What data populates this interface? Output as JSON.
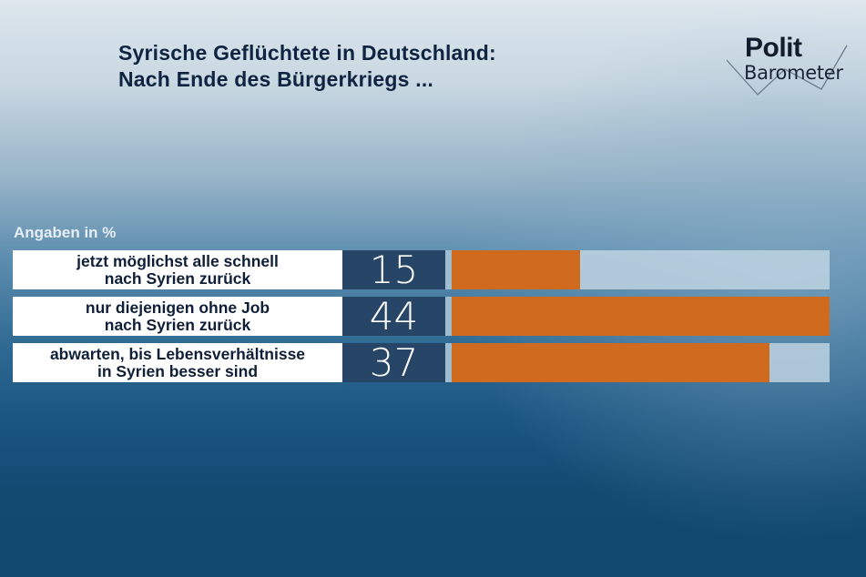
{
  "title": {
    "line1": "Syrische Geflüchtete in Deutschland:",
    "line2": "Nach Ende des Bürgerkriegs ..."
  },
  "logo": {
    "top": "Polit",
    "bottom": "Barometer"
  },
  "unit_label": "Angaben in %",
  "colors": {
    "bar": "#cf6a1e",
    "value_box": "#274566",
    "track": "#bed4e2",
    "title": "#0f2440"
  },
  "rows": [
    {
      "label_line1": "jetzt möglichst alle schnell",
      "label_line2": "nach Syrien zurück",
      "value": "15"
    },
    {
      "label_line1": "nur diejenigen ohne Job",
      "label_line2": "nach Syrien zurück",
      "value": "44"
    },
    {
      "label_line1": "abwarten, bis Lebensverhältnisse",
      "label_line2": "in Syrien besser sind",
      "value": "37"
    }
  ],
  "chart_data": {
    "type": "bar",
    "orientation": "horizontal",
    "title": "Syrische Geflüchtete in Deutschland: Nach Ende des Bürgerkriegs ...",
    "subtitle": "Angaben in %",
    "categories": [
      "jetzt möglichst alle schnell nach Syrien zurück",
      "nur diejenigen ohne Job nach Syrien zurück",
      "abwarten, bis Lebensverhältnisse in Syrien besser sind"
    ],
    "values": [
      15,
      44,
      37
    ],
    "xlabel": "",
    "ylabel": "",
    "xlim": [
      0,
      44
    ],
    "grid": false,
    "legend": null,
    "source_logo": "Polit Barometer"
  }
}
